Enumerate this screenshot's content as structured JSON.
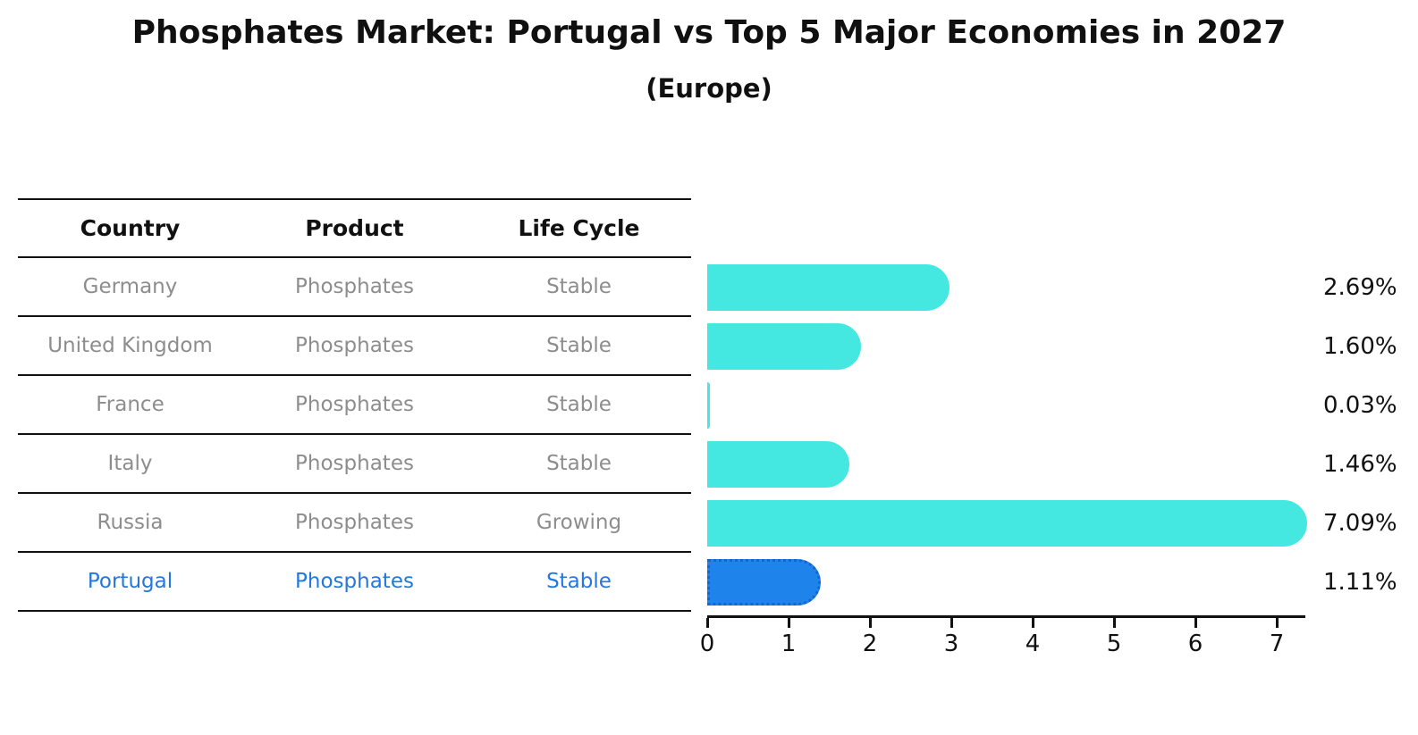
{
  "header": {
    "title": "Phosphates Market: Portugal vs Top 5 Major Economies in 2027",
    "subtitle": "(Europe)"
  },
  "table": {
    "columns": [
      "Country",
      "Product",
      "Life Cycle"
    ],
    "rows": [
      {
        "country": "Germany",
        "product": "Phosphates",
        "life_cycle": "Stable",
        "highlight": false
      },
      {
        "country": "United Kingdom",
        "product": "Phosphates",
        "life_cycle": "Stable",
        "highlight": false
      },
      {
        "country": "France",
        "product": "Phosphates",
        "life_cycle": "Stable",
        "highlight": false
      },
      {
        "country": "Italy",
        "product": "Phosphates",
        "life_cycle": "Stable",
        "highlight": false
      },
      {
        "country": "Russia",
        "product": "Phosphates",
        "life_cycle": "Growing",
        "highlight": false
      },
      {
        "country": "Portugal",
        "product": "Phosphates",
        "life_cycle": "Stable",
        "highlight": true
      }
    ]
  },
  "chart_data": {
    "type": "bar",
    "orientation": "horizontal",
    "title": "Phosphates Market: Portugal vs Top 5 Major Economies in 2027",
    "subtitle": "(Europe)",
    "categories": [
      "Germany",
      "United Kingdom",
      "France",
      "Italy",
      "Russia",
      "Portugal"
    ],
    "values": [
      2.69,
      1.6,
      0.03,
      1.46,
      7.09,
      1.11
    ],
    "value_labels": [
      "2.69%",
      "1.60%",
      "0.03%",
      "1.46%",
      "7.09%",
      "1.11%"
    ],
    "xlabel": "",
    "ylabel": "",
    "xlim": [
      0,
      7.35
    ],
    "xticks": [
      0,
      1,
      2,
      3,
      4,
      5,
      6,
      7
    ],
    "grid": false,
    "legend": "none",
    "highlight_index": 5,
    "colors": {
      "bar": "#45E8E0",
      "highlight_bar": "#1E84EB",
      "highlight_border": "#1565D0",
      "highlight_text": "#2478DC",
      "row_text": "#8d8d8d",
      "axis": "#111111"
    }
  }
}
